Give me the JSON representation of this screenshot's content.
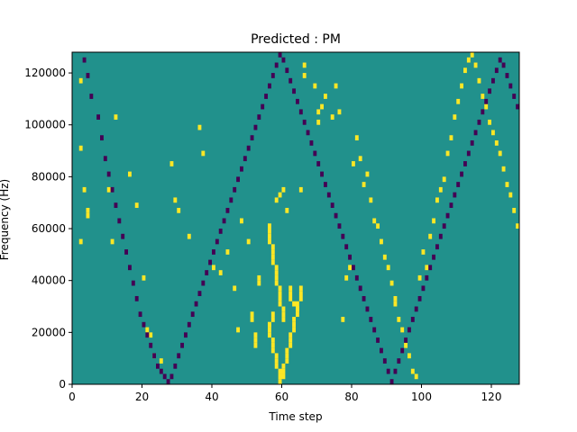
{
  "chart_data": {
    "type": "heatmap",
    "title": "Predicted : PM",
    "xlabel": "Time step",
    "ylabel": "Frequency (Hz)",
    "xlim": [
      0,
      128
    ],
    "ylim": [
      0,
      128000
    ],
    "x_ticks": [
      0,
      20,
      40,
      60,
      80,
      100,
      120
    ],
    "y_ticks": [
      0,
      20000,
      40000,
      60000,
      80000,
      100000,
      120000
    ],
    "bin_height_hz": 2000,
    "colors": {
      "background": "#21918c",
      "high": "#fde725",
      "low": "#440154"
    },
    "cells_high": [
      [
        2,
        58
      ],
      [
        2,
        45
      ],
      [
        3,
        37
      ],
      [
        4,
        33
      ],
      [
        4,
        32
      ],
      [
        2,
        27
      ],
      [
        10,
        37
      ],
      [
        11,
        27
      ],
      [
        12,
        51
      ],
      [
        16,
        40
      ],
      [
        18,
        34
      ],
      [
        20,
        20
      ],
      [
        21,
        10
      ],
      [
        22,
        9
      ],
      [
        23,
        5
      ],
      [
        25,
        4
      ],
      [
        28,
        42
      ],
      [
        29,
        35
      ],
      [
        30,
        33
      ],
      [
        33,
        28
      ],
      [
        36,
        49
      ],
      [
        37,
        44
      ],
      [
        40,
        22
      ],
      [
        42,
        21
      ],
      [
        44,
        25
      ],
      [
        46,
        18
      ],
      [
        47,
        10
      ],
      [
        48,
        31
      ],
      [
        50,
        27
      ],
      [
        51,
        13
      ],
      [
        51,
        12
      ],
      [
        52,
        9
      ],
      [
        52,
        8
      ],
      [
        52,
        7
      ],
      [
        53,
        20
      ],
      [
        53,
        19
      ],
      [
        56,
        11
      ],
      [
        57,
        13
      ],
      [
        57,
        12
      ],
      [
        58,
        35
      ],
      [
        59,
        36
      ],
      [
        60,
        37
      ],
      [
        61,
        33
      ],
      [
        62,
        18
      ],
      [
        62,
        17
      ],
      [
        62,
        16
      ],
      [
        63,
        15
      ],
      [
        64,
        14
      ],
      [
        65,
        37
      ],
      [
        66,
        59
      ],
      [
        66,
        61
      ],
      [
        69,
        57
      ],
      [
        70,
        50
      ],
      [
        70,
        52
      ],
      [
        71,
        53
      ],
      [
        72,
        55
      ],
      [
        74,
        51
      ],
      [
        75,
        57
      ],
      [
        76,
        52
      ],
      [
        77,
        12
      ],
      [
        78,
        20
      ],
      [
        79,
        22
      ],
      [
        80,
        42
      ],
      [
        81,
        47
      ],
      [
        82,
        43
      ],
      [
        83,
        38
      ],
      [
        84,
        40
      ],
      [
        85,
        35
      ],
      [
        86,
        31
      ],
      [
        87,
        30
      ],
      [
        88,
        27
      ],
      [
        89,
        24
      ],
      [
        90,
        22
      ],
      [
        91,
        19
      ],
      [
        92,
        16
      ],
      [
        92,
        15
      ],
      [
        93,
        12
      ],
      [
        94,
        10
      ],
      [
        95,
        7
      ],
      [
        96,
        5
      ],
      [
        97,
        2
      ],
      [
        98,
        1
      ],
      [
        99,
        20
      ],
      [
        100,
        25
      ],
      [
        101,
        22
      ],
      [
        102,
        28
      ],
      [
        103,
        31
      ],
      [
        104,
        35
      ],
      [
        105,
        37
      ],
      [
        106,
        39
      ],
      [
        107,
        44
      ],
      [
        108,
        47
      ],
      [
        109,
        51
      ],
      [
        110,
        54
      ],
      [
        111,
        57
      ],
      [
        112,
        60
      ],
      [
        113,
        62
      ],
      [
        114,
        63
      ],
      [
        115,
        61
      ],
      [
        116,
        58
      ],
      [
        117,
        55
      ],
      [
        118,
        53
      ],
      [
        119,
        50
      ],
      [
        120,
        48
      ],
      [
        121,
        46
      ],
      [
        122,
        44
      ],
      [
        123,
        41
      ],
      [
        124,
        38
      ],
      [
        125,
        36
      ],
      [
        126,
        33
      ],
      [
        127,
        30
      ],
      [
        56,
        30
      ],
      [
        56,
        29
      ],
      [
        56,
        28
      ],
      [
        56,
        27
      ],
      [
        57,
        26
      ],
      [
        57,
        25
      ],
      [
        57,
        24
      ],
      [
        57,
        23
      ],
      [
        58,
        22
      ],
      [
        58,
        21
      ],
      [
        58,
        20
      ],
      [
        58,
        19
      ],
      [
        59,
        18
      ],
      [
        59,
        17
      ],
      [
        59,
        16
      ],
      [
        59,
        15
      ],
      [
        60,
        14
      ],
      [
        60,
        13
      ],
      [
        60,
        12
      ],
      [
        56,
        11
      ],
      [
        56,
        10
      ],
      [
        56,
        9
      ],
      [
        57,
        8
      ],
      [
        57,
        7
      ],
      [
        57,
        6
      ],
      [
        58,
        5
      ],
      [
        58,
        4
      ],
      [
        58,
        3
      ],
      [
        59,
        2
      ],
      [
        59,
        1
      ],
      [
        59,
        0
      ],
      [
        60,
        1
      ],
      [
        60,
        2
      ],
      [
        60,
        3
      ],
      [
        61,
        4
      ],
      [
        61,
        5
      ],
      [
        61,
        6
      ],
      [
        62,
        7
      ],
      [
        62,
        8
      ],
      [
        62,
        9
      ],
      [
        63,
        10
      ],
      [
        63,
        11
      ],
      [
        63,
        12
      ],
      [
        64,
        13
      ],
      [
        64,
        14
      ],
      [
        64,
        15
      ],
      [
        65,
        16
      ],
      [
        65,
        17
      ],
      [
        65,
        18
      ]
    ],
    "cells_low": [
      [
        3,
        62
      ],
      [
        4,
        59
      ],
      [
        5,
        55
      ],
      [
        7,
        51
      ],
      [
        8,
        47
      ],
      [
        9,
        43
      ],
      [
        10,
        40
      ],
      [
        11,
        37
      ],
      [
        12,
        34
      ],
      [
        13,
        31
      ],
      [
        14,
        28
      ],
      [
        15,
        25
      ],
      [
        16,
        22
      ],
      [
        17,
        19
      ],
      [
        18,
        16
      ],
      [
        19,
        13
      ],
      [
        20,
        11
      ],
      [
        21,
        9
      ],
      [
        22,
        7
      ],
      [
        23,
        5
      ],
      [
        24,
        3
      ],
      [
        25,
        2
      ],
      [
        26,
        1
      ],
      [
        27,
        0
      ],
      [
        28,
        1
      ],
      [
        29,
        3
      ],
      [
        30,
        5
      ],
      [
        31,
        7
      ],
      [
        32,
        9
      ],
      [
        33,
        11
      ],
      [
        34,
        13
      ],
      [
        35,
        15
      ],
      [
        36,
        17
      ],
      [
        37,
        19
      ],
      [
        38,
        21
      ],
      [
        39,
        23
      ],
      [
        40,
        25
      ],
      [
        41,
        27
      ],
      [
        42,
        29
      ],
      [
        43,
        31
      ],
      [
        44,
        33
      ],
      [
        45,
        35
      ],
      [
        46,
        37
      ],
      [
        47,
        39
      ],
      [
        48,
        41
      ],
      [
        49,
        43
      ],
      [
        50,
        45
      ],
      [
        51,
        47
      ],
      [
        52,
        49
      ],
      [
        53,
        51
      ],
      [
        54,
        53
      ],
      [
        55,
        55
      ],
      [
        56,
        57
      ],
      [
        57,
        59
      ],
      [
        58,
        61
      ],
      [
        59,
        63
      ],
      [
        60,
        62
      ],
      [
        61,
        60
      ],
      [
        62,
        58
      ],
      [
        63,
        56
      ],
      [
        64,
        54
      ],
      [
        65,
        52
      ],
      [
        66,
        50
      ],
      [
        67,
        48
      ],
      [
        68,
        46
      ],
      [
        69,
        44
      ],
      [
        70,
        42
      ],
      [
        71,
        40
      ],
      [
        72,
        38
      ],
      [
        73,
        36
      ],
      [
        74,
        34
      ],
      [
        75,
        32
      ],
      [
        76,
        30
      ],
      [
        77,
        28
      ],
      [
        78,
        26
      ],
      [
        79,
        24
      ],
      [
        80,
        22
      ],
      [
        81,
        20
      ],
      [
        82,
        18
      ],
      [
        83,
        16
      ],
      [
        84,
        14
      ],
      [
        85,
        12
      ],
      [
        86,
        10
      ],
      [
        87,
        8
      ],
      [
        88,
        6
      ],
      [
        89,
        4
      ],
      [
        90,
        2
      ],
      [
        91,
        0
      ],
      [
        92,
        2
      ],
      [
        93,
        4
      ],
      [
        94,
        6
      ],
      [
        95,
        8
      ],
      [
        96,
        10
      ],
      [
        97,
        12
      ],
      [
        98,
        14
      ],
      [
        99,
        16
      ],
      [
        100,
        18
      ],
      [
        101,
        20
      ],
      [
        102,
        22
      ],
      [
        103,
        24
      ],
      [
        104,
        26
      ],
      [
        105,
        28
      ],
      [
        106,
        30
      ],
      [
        107,
        32
      ],
      [
        108,
        34
      ],
      [
        109,
        36
      ],
      [
        110,
        38
      ],
      [
        111,
        40
      ],
      [
        112,
        42
      ],
      [
        113,
        44
      ],
      [
        114,
        46
      ],
      [
        115,
        48
      ],
      [
        116,
        50
      ],
      [
        117,
        52
      ],
      [
        118,
        54
      ],
      [
        119,
        56
      ],
      [
        120,
        58
      ],
      [
        121,
        60
      ],
      [
        122,
        62
      ],
      [
        123,
        61
      ],
      [
        124,
        59
      ],
      [
        125,
        57
      ],
      [
        126,
        55
      ],
      [
        127,
        53
      ]
    ]
  }
}
